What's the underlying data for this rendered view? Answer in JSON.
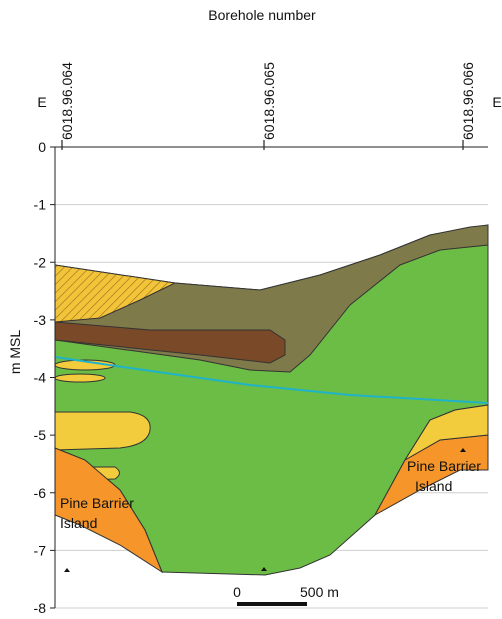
{
  "title": "Borehole number",
  "boreholes": [
    "6018.96.064",
    "6018.96.065",
    "6018.96.066"
  ],
  "direction_labels": [
    "E",
    "E"
  ],
  "y_axis": {
    "label": "m MSL",
    "ticks": [
      0,
      -1,
      -2,
      -3,
      -4,
      -5,
      -6,
      -7,
      -8
    ]
  },
  "annotations": [
    {
      "lines": [
        "Pine Barrier",
        "Island"
      ]
    },
    {
      "lines": [
        "Pine Barrier",
        "Island"
      ]
    }
  ],
  "scale_bar": {
    "start": "0",
    "end": "500 m"
  }
}
